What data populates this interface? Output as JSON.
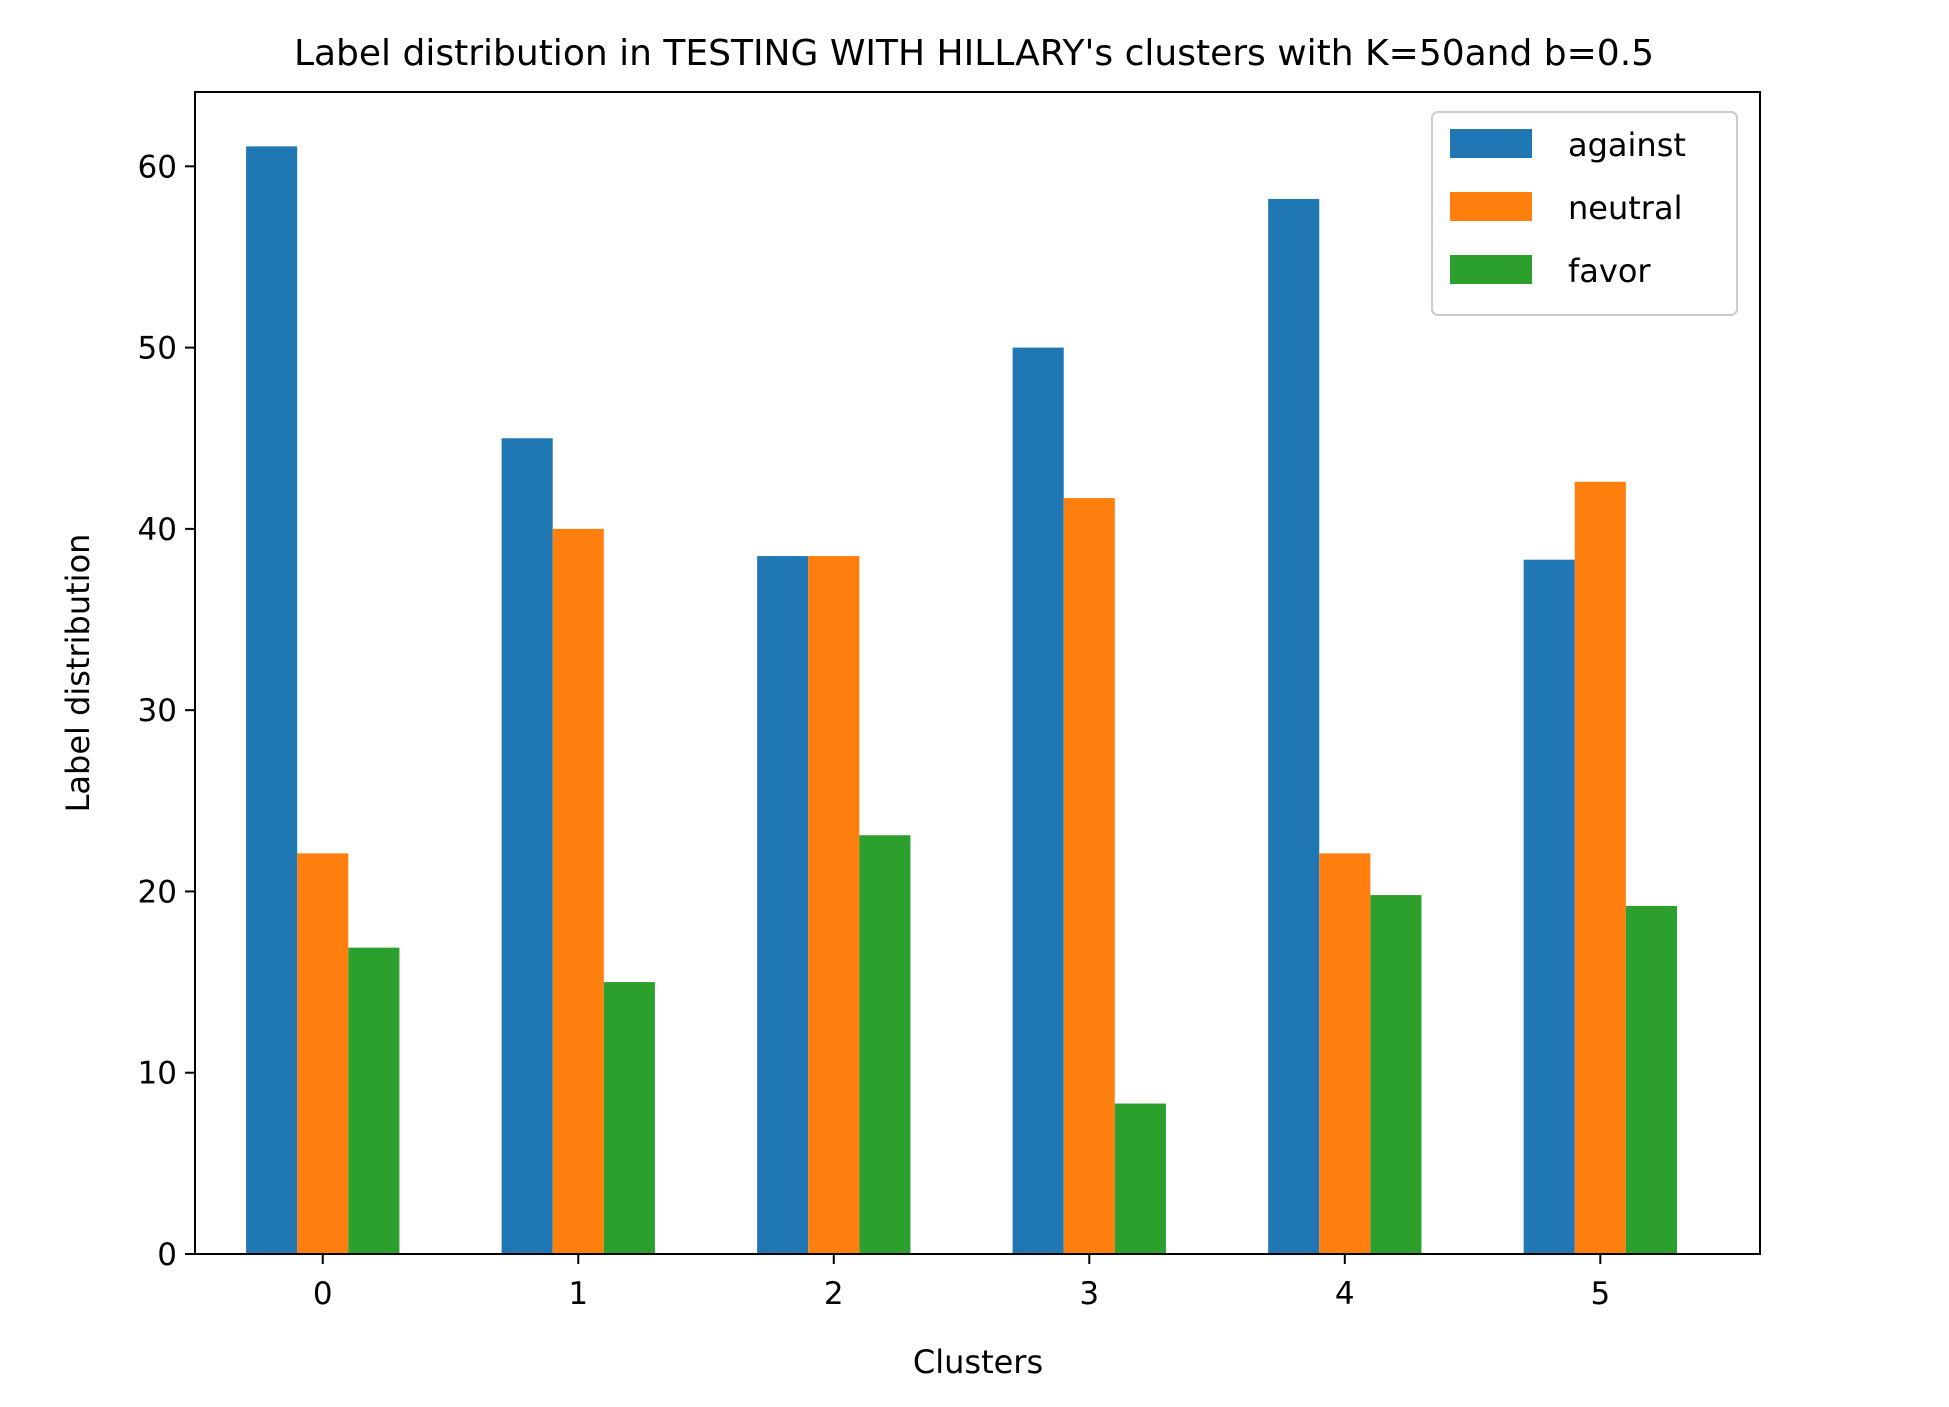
{
  "chart_data": {
    "type": "bar",
    "title": "Label distribution in TESTING WITH HILLARY's clusters with K=50and b=0.5",
    "xlabel": "Clusters",
    "ylabel": "Label distribution",
    "categories": [
      "0",
      "1",
      "2",
      "3",
      "4",
      "5"
    ],
    "series": [
      {
        "name": "against",
        "color": "#1f77b4",
        "values": [
          61.1,
          45.0,
          38.5,
          50.0,
          58.2,
          38.3
        ]
      },
      {
        "name": "neutral",
        "color": "#ff7f0e",
        "values": [
          22.1,
          40.0,
          38.5,
          41.7,
          22.1,
          42.6
        ]
      },
      {
        "name": "favor",
        "color": "#2ca02c",
        "values": [
          16.9,
          15.0,
          23.1,
          8.3,
          19.8,
          19.2
        ]
      }
    ],
    "ylim": [
      0,
      64.1
    ],
    "yticks": [
      0,
      10,
      20,
      30,
      40,
      50,
      60
    ],
    "legend_position": "top-right",
    "grid": false
  }
}
